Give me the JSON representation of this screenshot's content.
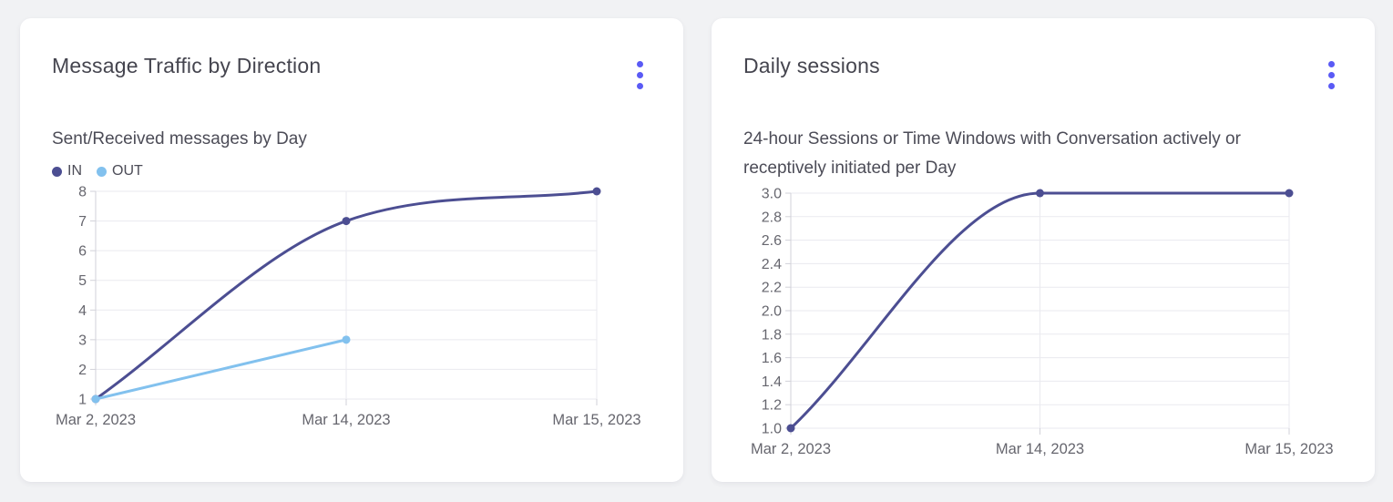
{
  "theme": {
    "accent": "#5a5af5",
    "page_bg": "#f1f2f4",
    "card_bg": "#ffffff",
    "grid_color": "#eaeaef",
    "axis_color": "#d2d2d9",
    "tick_label_color": "#66666e",
    "title_color": "#45454f",
    "subtitle_color": "#4c4c57"
  },
  "icons": {
    "card_menu": "kebab-vertical-three-dots"
  },
  "chart_data": [
    {
      "type": "line",
      "title": "Message Traffic by Direction",
      "subtitle": "Sent/Received messages by Day",
      "categories": [
        "Mar 2, 2023",
        "Mar 14, 2023",
        "Mar 15, 2023"
      ],
      "series": [
        {
          "name": "IN",
          "color": "#4c4e92",
          "values": [
            1,
            7,
            8
          ]
        },
        {
          "name": "OUT",
          "color": "#82c1ee",
          "values": [
            1,
            3,
            null
          ]
        }
      ],
      "ylim": [
        1,
        8
      ],
      "ytick_step": 1,
      "ytick_decimals": 0,
      "grid": true,
      "legend_position": "top-left",
      "curve": "monotone"
    },
    {
      "type": "line",
      "title": "Daily sessions",
      "subtitle": "24-hour Sessions or Time Windows with Conversation actively or receptively initiated per Day",
      "categories": [
        "Mar 2, 2023",
        "Mar 14, 2023",
        "Mar 15, 2023"
      ],
      "series": [
        {
          "name": "",
          "color": "#4c4e92",
          "values": [
            1.0,
            3.0,
            3.0
          ]
        }
      ],
      "ylim": [
        1.0,
        3.0
      ],
      "ytick_step": 0.2,
      "ytick_decimals": 1,
      "grid": true,
      "legend_position": "none",
      "curve": "monotone"
    }
  ]
}
